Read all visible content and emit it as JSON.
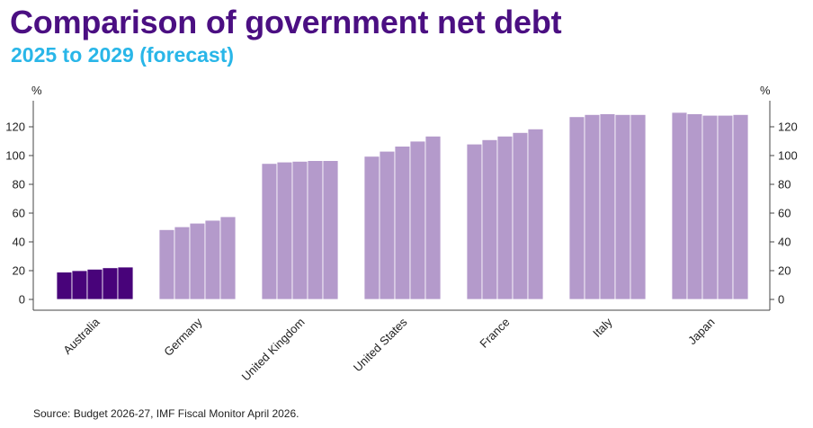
{
  "title": "Comparison of government net debt",
  "subtitle": "2025 to 2029 (forecast)",
  "source": "Source: Budget 2026-27, IMF Fiscal Monitor April 2026.",
  "colors": {
    "title": "#4b0f82",
    "subtitle": "#29b6e8",
    "highlight": "#48037a",
    "bars": "#b49acb"
  },
  "chart_data": {
    "type": "bar",
    "title": "Comparison of government net debt",
    "subtitle": "2025 to 2029 (forecast)",
    "ylabel_left": "%",
    "ylabel_right": "%",
    "ylim": [
      0,
      130
    ],
    "yticks": [
      0,
      20,
      40,
      60,
      80,
      100,
      120
    ],
    "grid": false,
    "legend": "none",
    "categories": [
      "Australia",
      "Germany",
      "United Kingdom",
      "United States",
      "France",
      "Italy",
      "Japan"
    ],
    "values": [
      [
        19,
        20,
        21,
        22,
        22.5
      ],
      [
        48.5,
        50.5,
        53,
        55,
        57.5
      ],
      [
        94.5,
        95.5,
        96,
        96.5,
        96.5
      ],
      [
        99.5,
        103,
        106.5,
        110,
        113.5
      ],
      [
        108,
        111,
        113.5,
        116,
        118.5
      ],
      [
        127,
        128.5,
        129,
        128.5,
        128.5
      ],
      [
        130,
        129,
        128,
        128,
        128.5
      ]
    ],
    "highlight_category": "Australia"
  }
}
